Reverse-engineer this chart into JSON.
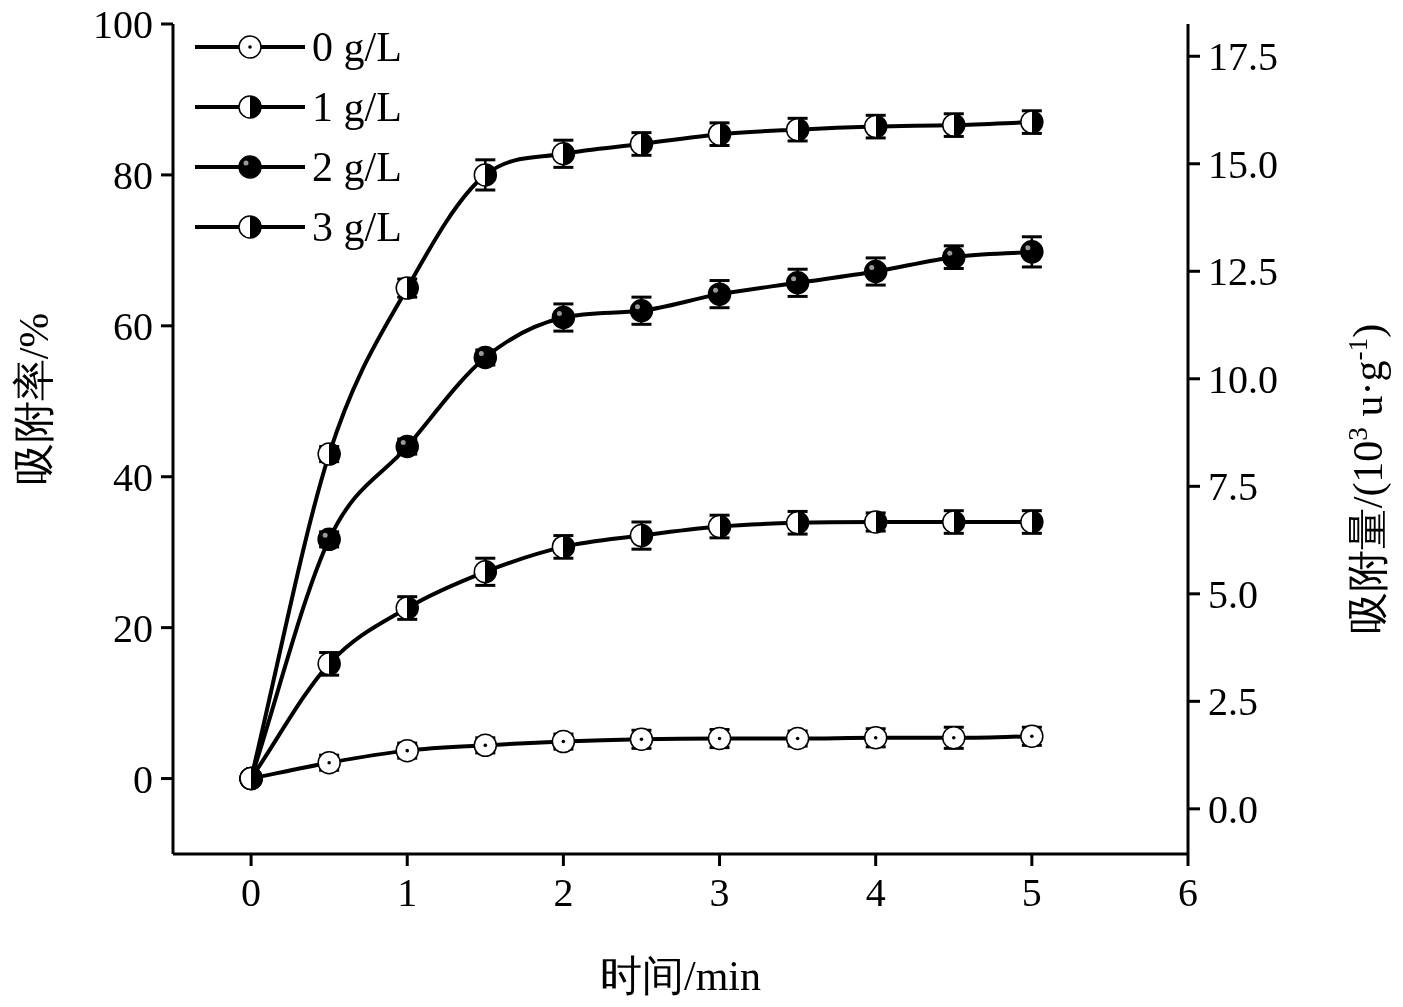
{
  "chart_data": {
    "type": "line",
    "xlabel": "时间/min",
    "ylabel": "吸附率/%",
    "y2label": "吸附量/(10$^{3}$ u·g$^{-1}$)",
    "x": [
      0,
      0.5,
      1,
      1.5,
      2,
      2.5,
      3,
      3.5,
      4,
      4.5,
      5
    ],
    "xlim": [
      -0.5,
      6
    ],
    "xticks": [
      0,
      1,
      2,
      3,
      4,
      5,
      6
    ],
    "ylim": [
      -10,
      100
    ],
    "yticks": [
      0,
      20,
      40,
      60,
      80,
      100
    ],
    "y2lim": [
      -1.05,
      18.25
    ],
    "y2ticks": [
      {
        "value": 0,
        "label": "0.0"
      },
      {
        "value": 2.5,
        "label": "2.5"
      },
      {
        "value": 5,
        "label": "5.0"
      },
      {
        "value": 7.5,
        "label": "7.5"
      },
      {
        "value": 10,
        "label": "10.0"
      },
      {
        "value": 12.5,
        "label": "12.5"
      },
      {
        "value": 15,
        "label": "15.0"
      },
      {
        "value": 17.5,
        "label": "17.5"
      }
    ],
    "marker": "circle",
    "legend": "top left",
    "series": [
      {
        "name": "0 g/L",
        "color": "#000000",
        "values": [
          0,
          2.1,
          3.7,
          4.4,
          4.9,
          5.2,
          5.3,
          5.3,
          5.4,
          5.4,
          5.6
        ],
        "errors": [
          null,
          1,
          1,
          1,
          1,
          1.2,
          1.2,
          1,
          1.2,
          1.4,
          1.2
        ]
      },
      {
        "name": "1 g/L",
        "color": "#000000",
        "values": [
          0,
          15.2,
          22.6,
          27.4,
          30.7,
          32.2,
          33.4,
          33.9,
          34.0,
          34.0,
          34.0
        ],
        "errors": [
          null,
          1.5,
          1.5,
          1.8,
          1.5,
          1.8,
          1.5,
          1.5,
          1.2,
          1.5,
          1.5
        ]
      },
      {
        "name": "2 g/L",
        "color": "#000000",
        "values": [
          0,
          31.7,
          44.0,
          55.8,
          61.1,
          62.0,
          64.2,
          65.7,
          67.2,
          69.1,
          69.8
        ],
        "errors": [
          null,
          1,
          1,
          1,
          1.8,
          1.8,
          1.8,
          1.8,
          1.8,
          1.5,
          2
        ]
      },
      {
        "name": "3 g/L",
        "color": "#000000",
        "values": [
          0,
          43.0,
          65.0,
          80.0,
          82.8,
          84.1,
          85.4,
          86.0,
          86.4,
          86.6,
          87.0
        ],
        "errors": [
          null,
          1,
          1.2,
          2,
          1.8,
          1.5,
          1.5,
          1.5,
          1.5,
          1.5,
          1.5
        ]
      }
    ]
  }
}
